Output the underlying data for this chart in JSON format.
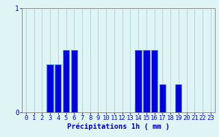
{
  "categories": [
    0,
    1,
    2,
    3,
    4,
    5,
    6,
    7,
    8,
    9,
    10,
    11,
    12,
    13,
    14,
    15,
    16,
    17,
    18,
    19,
    20,
    21,
    22,
    23
  ],
  "values": [
    0,
    0,
    0,
    0.46,
    0.46,
    0.6,
    0.6,
    0,
    0,
    0,
    0,
    0,
    0,
    0,
    0.6,
    0.6,
    0.6,
    0.27,
    0,
    0.27,
    0,
    0,
    0,
    0
  ],
  "bar_color": "#0000dd",
  "bar_edge_color": "#4488ff",
  "xlabel": "Précipitations 1h ( mm )",
  "xlabel_color": "#0000cc",
  "ylim": [
    0,
    1.0
  ],
  "xlim": [
    -0.5,
    23.5
  ],
  "yticks": [
    0,
    1
  ],
  "ytick_labels": [
    "0",
    "1"
  ],
  "background_color": "#dff4f4",
  "grid_color": "#aacfcf",
  "tick_color": "#0000cc",
  "spine_color": "#888888",
  "xlabel_fontsize": 7.5,
  "tick_fontsize": 6.5
}
